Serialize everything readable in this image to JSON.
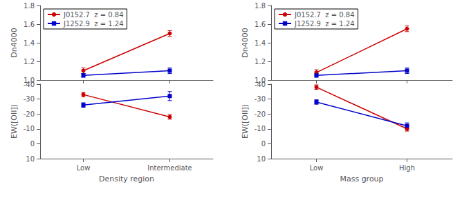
{
  "chart_data": [
    {
      "type": "line",
      "ylabel": "Dn4000",
      "categories": [
        "Low",
        "Intermediate"
      ],
      "series": [
        {
          "name": "J0152.7  z = 0.84",
          "color": "#cc0000",
          "marker": "circle",
          "values": [
            1.1,
            1.5
          ],
          "errors": [
            0.03,
            0.03
          ]
        },
        {
          "name": "J1252.9  z = 1.24",
          "color": "#0000cc",
          "marker": "square",
          "values": [
            1.05,
            1.1
          ],
          "errors": [
            0.02,
            0.03
          ]
        }
      ],
      "ylim": [
        1.0,
        1.8
      ],
      "yticks": [
        {
          "value": 1.0,
          "label": "1.0"
        },
        1.2,
        1.4,
        1.6,
        1.8
      ],
      "legend": "upper left",
      "tick_labels": "y",
      "grid": false
    },
    {
      "type": "line",
      "ylabel": "EW([OII])",
      "xlabel": "Density region",
      "categories": [
        "Low",
        "Intermediate"
      ],
      "series": [
        {
          "color": "#cc0000",
          "marker": "circle",
          "values": [
            -33,
            -18
          ],
          "errors": [
            1.5,
            1.5
          ]
        },
        {
          "color": "#0000cc",
          "marker": "square",
          "values": [
            -26,
            -32
          ],
          "errors": [
            1.5,
            3.0
          ]
        }
      ],
      "ylim": [
        10,
        -40
      ],
      "yticks": [
        -40,
        -30,
        -20,
        -10,
        0,
        10
      ],
      "grid": false
    },
    {
      "type": "line",
      "ylabel": "Dn4000",
      "categories": [
        "Low",
        "High"
      ],
      "series": [
        {
          "name": "J0152.7  z = 0.84",
          "color": "#cc0000",
          "marker": "circle",
          "values": [
            1.08,
            1.55
          ],
          "errors": [
            0.03,
            0.03
          ]
        },
        {
          "name": "J1252.9  z = 1.24",
          "color": "#0000cc",
          "marker": "square",
          "values": [
            1.05,
            1.1
          ],
          "errors": [
            0.02,
            0.03
          ]
        }
      ],
      "ylim": [
        1.0,
        1.8
      ],
      "yticks": [
        {
          "value": 1.0,
          "label": "1.0"
        },
        1.2,
        1.4,
        1.6,
        1.8
      ],
      "legend": "upper left",
      "tick_labels": "y",
      "grid": false
    },
    {
      "type": "line",
      "ylabel": "EW([OII])",
      "xlabel": "Mass group",
      "categories": [
        "Low",
        "High"
      ],
      "series": [
        {
          "color": "#cc0000",
          "marker": "circle",
          "values": [
            -38,
            -10
          ],
          "errors": [
            1.5,
            1.5
          ]
        },
        {
          "color": "#0000cc",
          "marker": "square",
          "values": [
            -28,
            -12
          ],
          "errors": [
            1.5,
            2.0
          ]
        }
      ],
      "ylim": [
        10,
        -40
      ],
      "yticks": [
        -40,
        -30,
        -20,
        -10,
        0,
        10
      ],
      "grid": false
    }
  ]
}
